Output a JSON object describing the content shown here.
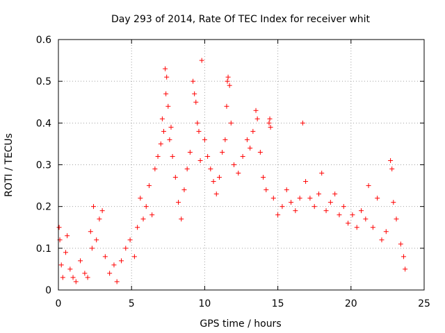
{
  "chart_data": {
    "type": "scatter",
    "title": "Day 293 of 2014, Rate Of TEC Index for receiver whit",
    "xlabel": "GPS time / hours",
    "ylabel": "ROTI / TECUs",
    "xlim": [
      0,
      25
    ],
    "ylim": [
      0,
      0.6
    ],
    "x_ticks": [
      0,
      5,
      10,
      15,
      20,
      25
    ],
    "x_tick_labels": [
      "0",
      "5",
      "10",
      "15",
      "20",
      "25"
    ],
    "y_ticks": [
      0,
      0.1,
      0.2,
      0.3,
      0.4,
      0.5,
      0.6
    ],
    "y_tick_labels": [
      "0",
      "0.1",
      "0.2",
      "0.3",
      "0.4",
      "0.5",
      "0.6"
    ],
    "grid": true,
    "marker": "+",
    "marker_color": "#ff0000",
    "series": [
      {
        "name": "ROTI",
        "points": [
          [
            0.05,
            0.15
          ],
          [
            0.1,
            0.12
          ],
          [
            0.2,
            0.06
          ],
          [
            0.3,
            0.03
          ],
          [
            0.5,
            0.09
          ],
          [
            0.6,
            0.13
          ],
          [
            0.8,
            0.05
          ],
          [
            1.0,
            0.03
          ],
          [
            1.2,
            0.02
          ],
          [
            1.5,
            0.07
          ],
          [
            1.8,
            0.04
          ],
          [
            2.0,
            0.03
          ],
          [
            2.2,
            0.14
          ],
          [
            2.3,
            0.1
          ],
          [
            2.4,
            0.2
          ],
          [
            2.6,
            0.12
          ],
          [
            2.8,
            0.17
          ],
          [
            3.0,
            0.19
          ],
          [
            3.2,
            0.08
          ],
          [
            3.5,
            0.04
          ],
          [
            3.8,
            0.06
          ],
          [
            4.0,
            0.02
          ],
          [
            4.3,
            0.07
          ],
          [
            4.6,
            0.1
          ],
          [
            4.9,
            0.12
          ],
          [
            5.2,
            0.08
          ],
          [
            5.4,
            0.15
          ],
          [
            5.6,
            0.22
          ],
          [
            5.8,
            0.17
          ],
          [
            6.0,
            0.2
          ],
          [
            6.2,
            0.25
          ],
          [
            6.4,
            0.18
          ],
          [
            6.6,
            0.29
          ],
          [
            6.8,
            0.32
          ],
          [
            7.0,
            0.35
          ],
          [
            7.1,
            0.41
          ],
          [
            7.2,
            0.38
          ],
          [
            7.3,
            0.53
          ],
          [
            7.35,
            0.47
          ],
          [
            7.4,
            0.51
          ],
          [
            7.5,
            0.44
          ],
          [
            7.6,
            0.36
          ],
          [
            7.7,
            0.39
          ],
          [
            7.8,
            0.32
          ],
          [
            8.0,
            0.27
          ],
          [
            8.2,
            0.21
          ],
          [
            8.4,
            0.17
          ],
          [
            8.6,
            0.24
          ],
          [
            8.8,
            0.29
          ],
          [
            9.0,
            0.33
          ],
          [
            9.2,
            0.5
          ],
          [
            9.3,
            0.47
          ],
          [
            9.4,
            0.45
          ],
          [
            9.5,
            0.4
          ],
          [
            9.6,
            0.38
          ],
          [
            9.7,
            0.31
          ],
          [
            9.8,
            0.55
          ],
          [
            10.0,
            0.36
          ],
          [
            10.2,
            0.32
          ],
          [
            10.4,
            0.29
          ],
          [
            10.6,
            0.26
          ],
          [
            10.8,
            0.23
          ],
          [
            11.0,
            0.27
          ],
          [
            11.2,
            0.33
          ],
          [
            11.4,
            0.36
          ],
          [
            11.5,
            0.44
          ],
          [
            11.55,
            0.5
          ],
          [
            11.6,
            0.51
          ],
          [
            11.7,
            0.49
          ],
          [
            11.8,
            0.4
          ],
          [
            12.0,
            0.3
          ],
          [
            12.3,
            0.28
          ],
          [
            12.6,
            0.32
          ],
          [
            12.9,
            0.36
          ],
          [
            13.1,
            0.34
          ],
          [
            13.3,
            0.38
          ],
          [
            13.5,
            0.43
          ],
          [
            13.6,
            0.41
          ],
          [
            13.8,
            0.33
          ],
          [
            14.0,
            0.27
          ],
          [
            14.2,
            0.24
          ],
          [
            14.4,
            0.4
          ],
          [
            14.45,
            0.41
          ],
          [
            14.5,
            0.39
          ],
          [
            14.7,
            0.22
          ],
          [
            15.0,
            0.18
          ],
          [
            15.3,
            0.2
          ],
          [
            15.6,
            0.24
          ],
          [
            15.9,
            0.21
          ],
          [
            16.2,
            0.19
          ],
          [
            16.5,
            0.22
          ],
          [
            16.7,
            0.4
          ],
          [
            16.9,
            0.26
          ],
          [
            17.2,
            0.22
          ],
          [
            17.5,
            0.2
          ],
          [
            17.8,
            0.23
          ],
          [
            18.0,
            0.28
          ],
          [
            18.3,
            0.19
          ],
          [
            18.6,
            0.21
          ],
          [
            18.9,
            0.23
          ],
          [
            19.2,
            0.18
          ],
          [
            19.5,
            0.2
          ],
          [
            19.8,
            0.16
          ],
          [
            20.1,
            0.18
          ],
          [
            20.4,
            0.15
          ],
          [
            20.7,
            0.19
          ],
          [
            21.0,
            0.17
          ],
          [
            21.2,
            0.25
          ],
          [
            21.5,
            0.15
          ],
          [
            21.8,
            0.22
          ],
          [
            22.1,
            0.12
          ],
          [
            22.4,
            0.14
          ],
          [
            22.7,
            0.31
          ],
          [
            22.8,
            0.29
          ],
          [
            22.9,
            0.21
          ],
          [
            23.1,
            0.17
          ],
          [
            23.4,
            0.11
          ],
          [
            23.6,
            0.08
          ],
          [
            23.7,
            0.05
          ]
        ]
      }
    ]
  }
}
